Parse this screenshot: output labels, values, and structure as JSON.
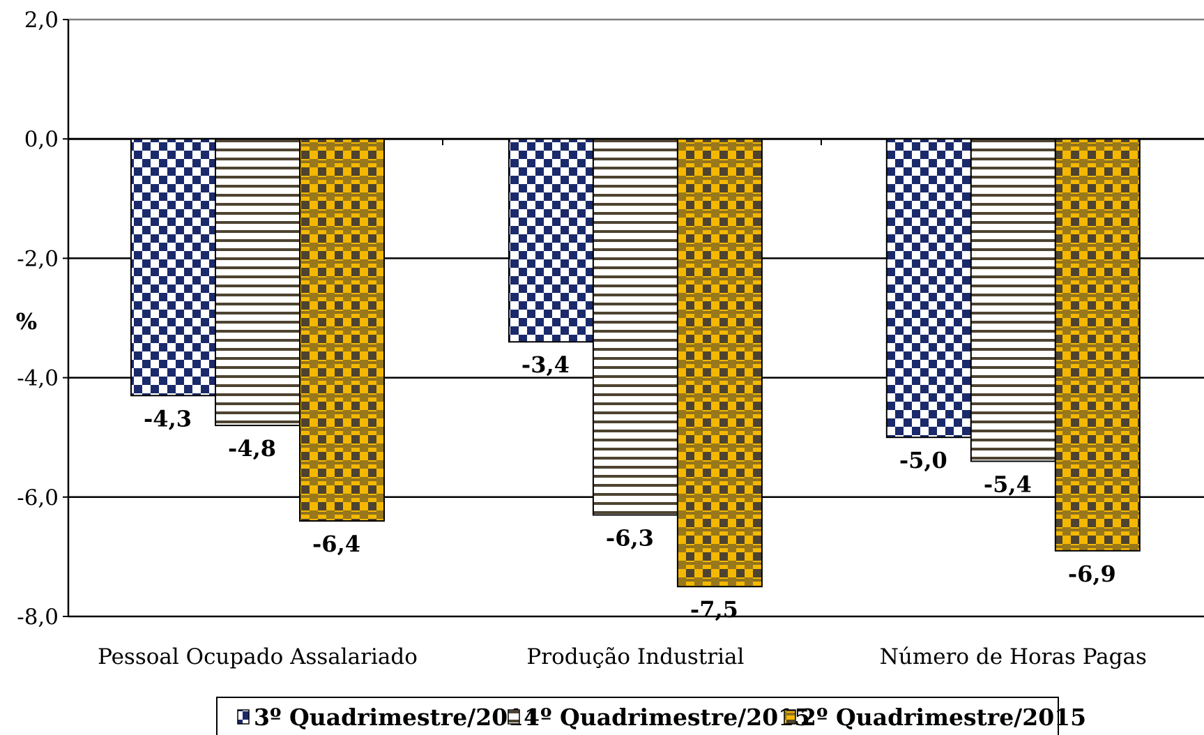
{
  "chart_data": {
    "type": "bar",
    "categories": [
      "Pessoal Ocupado Assalariado",
      "Produção Industrial",
      "Número de Horas Pagas"
    ],
    "series": [
      {
        "name": "3º Quadrimestre/2014",
        "values": [
          -4.3,
          -3.4,
          -5.0
        ],
        "labels": [
          "-4,3",
          "-3,4",
          "-5,0"
        ],
        "pattern": "checker",
        "color": "#1b2a6b"
      },
      {
        "name": "1º Quadrimestre/2015",
        "values": [
          -4.8,
          -6.3,
          -5.4
        ],
        "labels": [
          "-4,8",
          "-6,3",
          "-5,4"
        ],
        "pattern": "hstripes",
        "color": "#4d4330"
      },
      {
        "name": "2º Quadrimestre/2015",
        "values": [
          -6.4,
          -7.5,
          -6.9
        ],
        "labels": [
          "-6,4",
          "-7,5",
          "-6,9"
        ],
        "pattern": "weave",
        "color": "#f5b800"
      }
    ],
    "ylabel": "%",
    "ylim": [
      -8.0,
      2.0
    ],
    "yticks": [
      2.0,
      0.0,
      -2.0,
      -4.0,
      -6.0,
      -8.0
    ],
    "ytick_labels": [
      "2,0",
      "0,0",
      "-2,0",
      "-4,0",
      "-6,0",
      "-8,0"
    ],
    "grid": true,
    "legend_position": "bottom",
    "colors": {
      "navy": "#1b2a6b",
      "olive": "#4d4330",
      "gold": "#f5b800",
      "gridline": "#000000"
    }
  }
}
